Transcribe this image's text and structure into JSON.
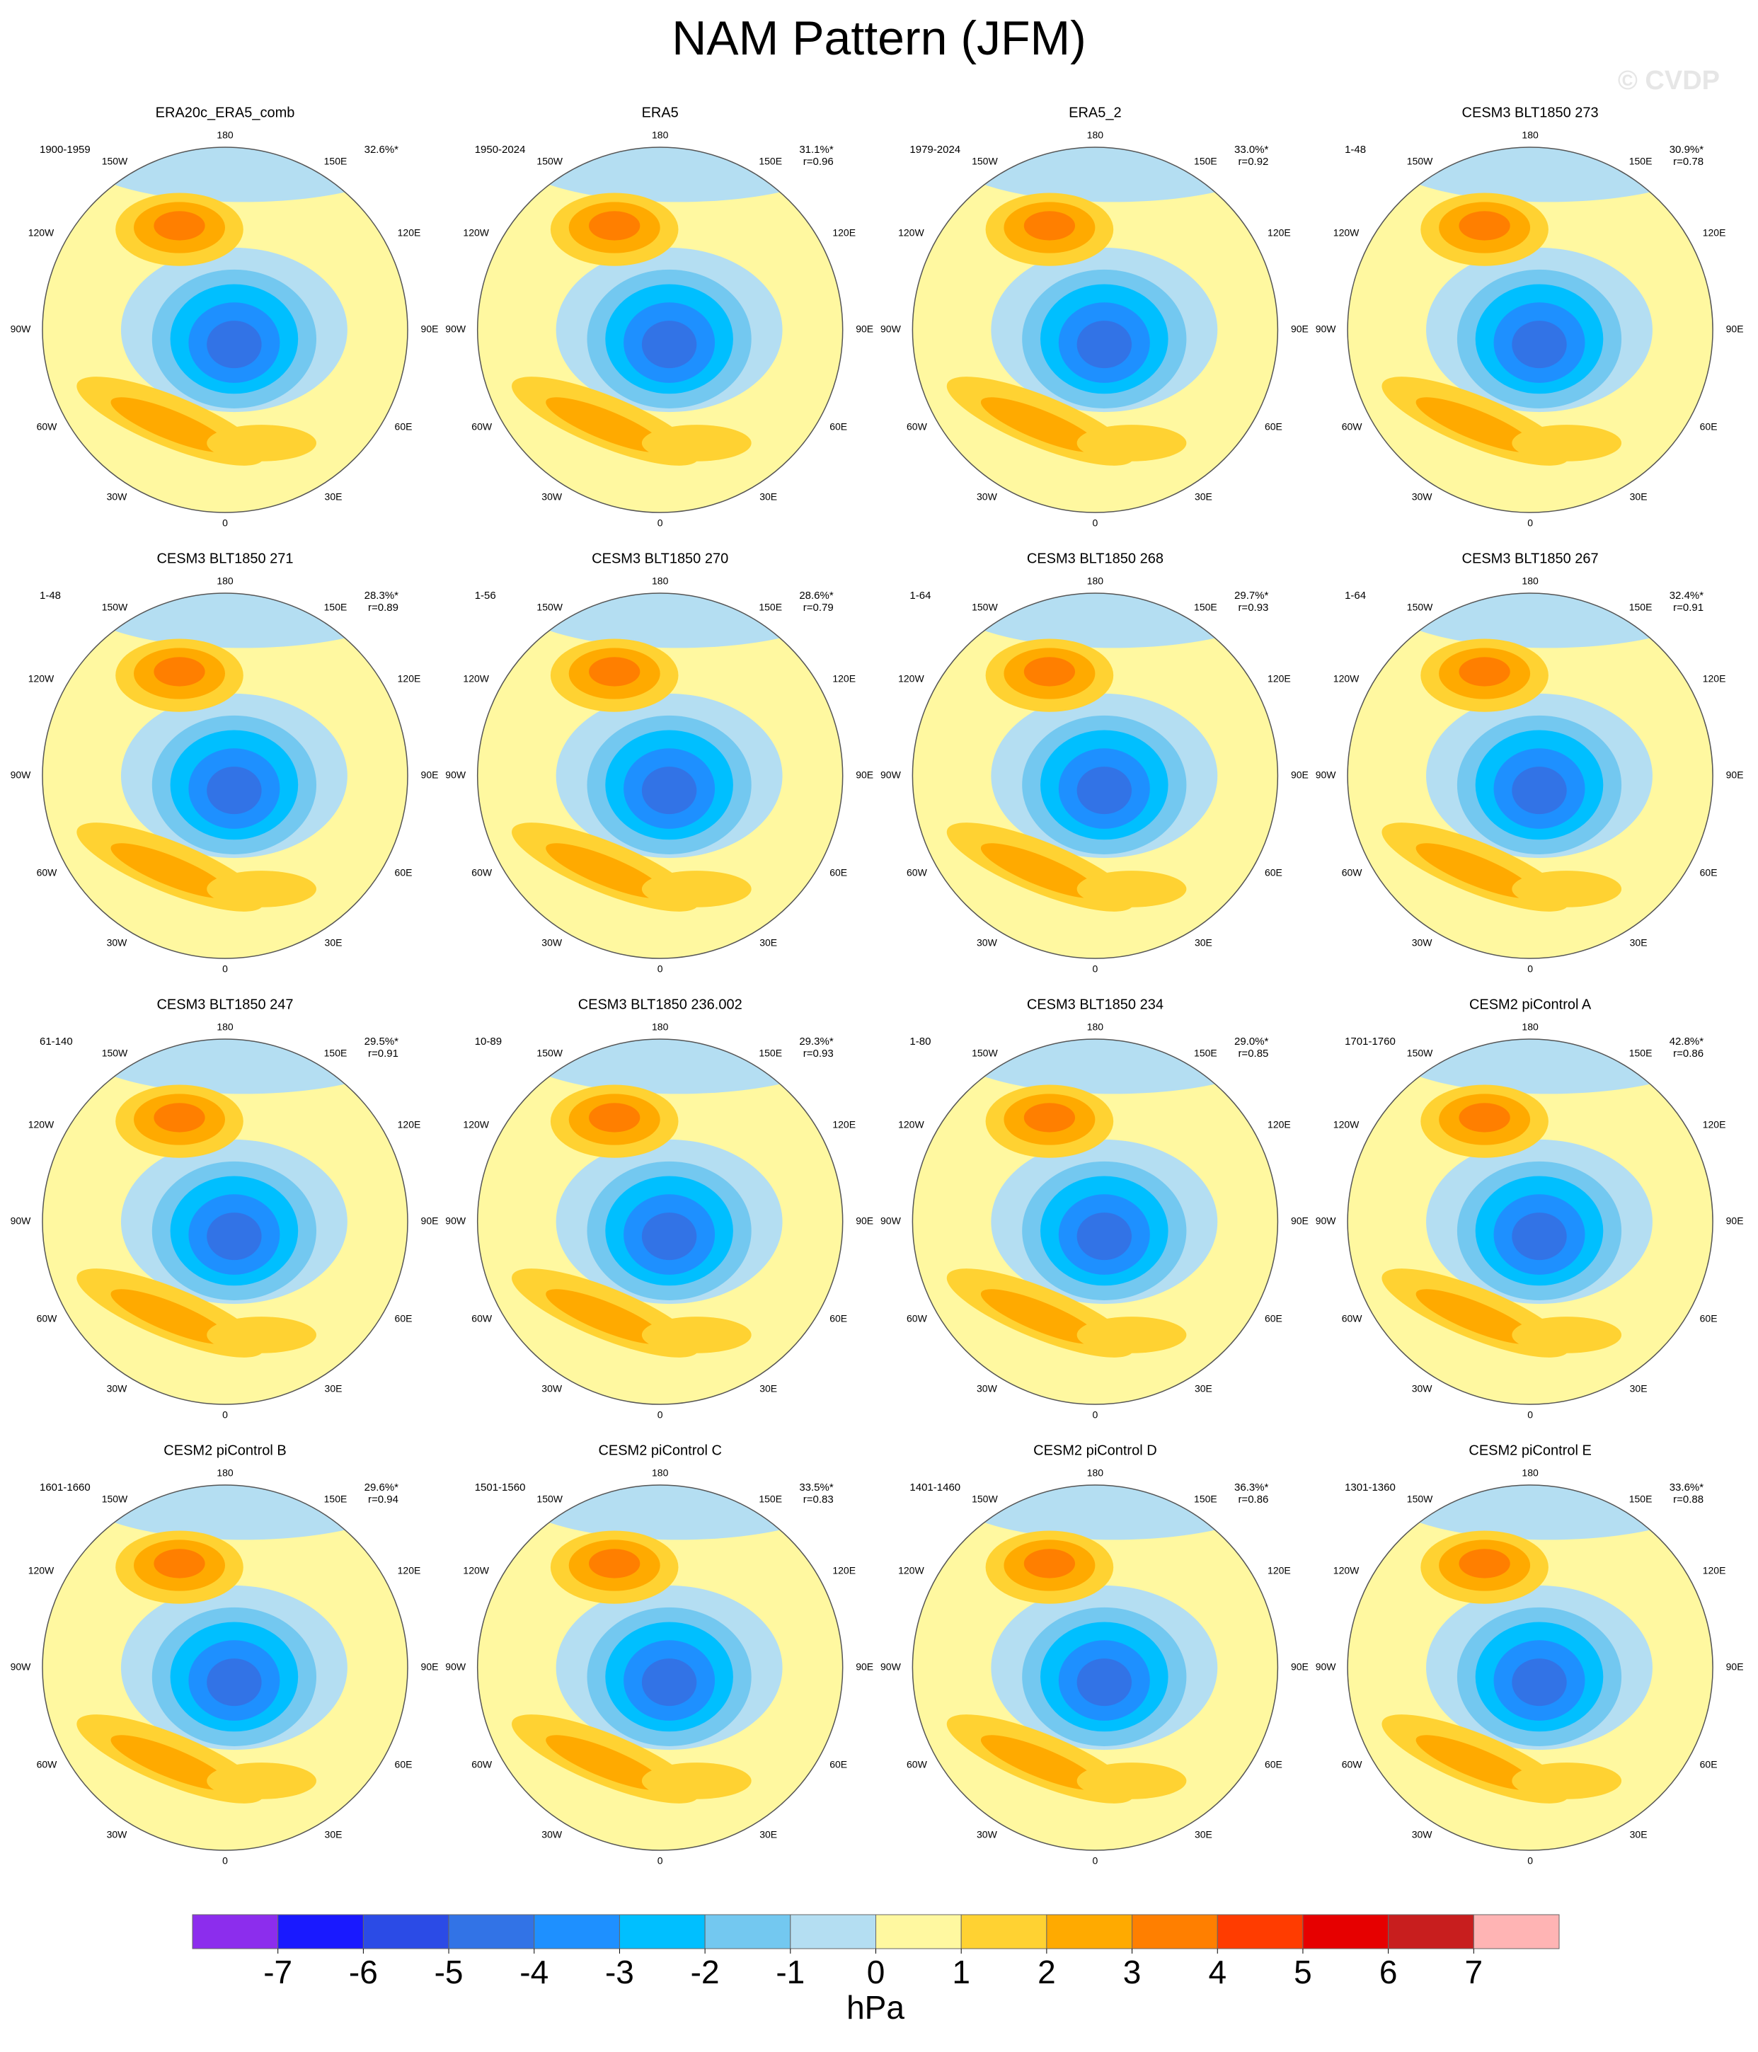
{
  "title": "NAM Pattern (JFM)",
  "watermark": "© CVDP",
  "longitude_labels": [
    "180",
    "150W",
    "150E",
    "120W",
    "120E",
    "90W",
    "90E",
    "60W",
    "60E",
    "30W",
    "30E",
    "0"
  ],
  "panels": [
    {
      "title": "ERA20c_ERA5_comb",
      "period": "1900-1959",
      "variance": "32.6%*"
    },
    {
      "title": "ERA5",
      "period": "1950-2024",
      "variance": "31.1%*",
      "correlation": "r=0.96"
    },
    {
      "title": "ERA5_2",
      "period": "1979-2024",
      "variance": "33.0%*",
      "correlation": "r=0.92"
    },
    {
      "title": "CESM3 BLT1850 273",
      "period": "1-48",
      "variance": "30.9%*",
      "correlation": "r=0.78"
    },
    {
      "title": "CESM3 BLT1850 271",
      "period": "1-48",
      "variance": "28.3%*",
      "correlation": "r=0.89"
    },
    {
      "title": "CESM3 BLT1850 270",
      "period": "1-56",
      "variance": "28.6%*",
      "correlation": "r=0.79"
    },
    {
      "title": "CESM3 BLT1850 268",
      "period": "1-64",
      "variance": "29.7%*",
      "correlation": "r=0.93"
    },
    {
      "title": "CESM3 BLT1850 267",
      "period": "1-64",
      "variance": "32.4%*",
      "correlation": "r=0.91"
    },
    {
      "title": "CESM3 BLT1850 247",
      "period": "61-140",
      "variance": "29.5%*",
      "correlation": "r=0.91"
    },
    {
      "title": "CESM3 BLT1850 236.002",
      "period": "10-89",
      "variance": "29.3%*",
      "correlation": "r=0.93"
    },
    {
      "title": "CESM3 BLT1850 234",
      "period": "1-80",
      "variance": "29.0%*",
      "correlation": "r=0.85"
    },
    {
      "title": "CESM2 piControl A",
      "period": "1701-1760",
      "variance": "42.8%*",
      "correlation": "r=0.86"
    },
    {
      "title": "CESM2 piControl B",
      "period": "1601-1660",
      "variance": "29.6%*",
      "correlation": "r=0.94"
    },
    {
      "title": "CESM2 piControl C",
      "period": "1501-1560",
      "variance": "33.5%*",
      "correlation": "r=0.83"
    },
    {
      "title": "CESM2 piControl D",
      "period": "1401-1460",
      "variance": "36.3%*",
      "correlation": "r=0.86"
    },
    {
      "title": "CESM2 piControl E",
      "period": "1301-1360",
      "variance": "33.6%*",
      "correlation": "r=0.88"
    }
  ],
  "colorbar": {
    "label": "hPa",
    "ticks": [
      -7,
      -6,
      -5,
      -4,
      -3,
      -2,
      -1,
      0,
      1,
      2,
      3,
      4,
      5,
      6,
      7
    ],
    "colors": [
      "#8c2ded",
      "#1919ff",
      "#2b4be6",
      "#3273e6",
      "#1e90ff",
      "#00bfff",
      "#73c8f0",
      "#b4def2",
      "#fff8a0",
      "#ffd232",
      "#ffaa00",
      "#ff7f00",
      "#ff3c00",
      "#e60000",
      "#c81e1e",
      "#ffb4b4"
    ]
  }
}
